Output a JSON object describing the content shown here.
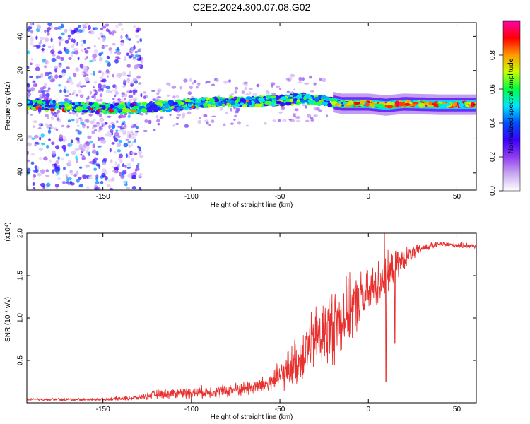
{
  "title": "C2E2.2024.300.07.08.G02",
  "chart_data": [
    {
      "type": "heatmap",
      "xlabel": "Height of straight line (km)",
      "ylabel": "Frequency (Hz)",
      "xlim": [
        -193,
        61
      ],
      "ylim": [
        -50,
        48
      ],
      "x_ticks": [
        -150,
        -100,
        -50,
        0,
        50
      ],
      "y_ticks": [
        -40,
        -20,
        0,
        20,
        40
      ],
      "x_tick_labels": [
        "-150",
        "-100",
        "-50",
        "0",
        "50"
      ],
      "y_tick_labels": [
        "-40",
        "-20",
        "0",
        "20",
        "40"
      ],
      "colorbar": {
        "label": "Normalized spectral amplitude",
        "range": [
          0,
          1
        ],
        "ticks": [
          0.0,
          0.2,
          0.4,
          0.6,
          0.8
        ],
        "tick_labels": [
          "0.0",
          "0.2",
          "0.4",
          "0.6",
          "0.8"
        ],
        "colormap": [
          "#ffffff",
          "#c9a8f0",
          "#8f3cf0",
          "#3a00ff",
          "#0050ff",
          "#00e5ff",
          "#00ff40",
          "#c8ff00",
          "#ff9a00",
          "#ff0000",
          "#ff00a8"
        ]
      },
      "ridge": [
        {
          "x": -193,
          "f": 0.0
        },
        {
          "x": -170,
          "f": -1.0
        },
        {
          "x": -150,
          "f": -2.5
        },
        {
          "x": -130,
          "f": -2.0
        },
        {
          "x": -110,
          "f": -0.5
        },
        {
          "x": -90,
          "f": 1.5
        },
        {
          "x": -70,
          "f": 1.5
        },
        {
          "x": -50,
          "f": 2.5
        },
        {
          "x": -35,
          "f": 3.5
        },
        {
          "x": -25,
          "f": 2.5
        },
        {
          "x": -15,
          "f": 0.5
        },
        {
          "x": 0,
          "f": 0.5
        },
        {
          "x": 10,
          "f": -0.5
        },
        {
          "x": 20,
          "f": 0.5
        },
        {
          "x": 40,
          "f": 0.0
        },
        {
          "x": 61,
          "f": 0.0
        }
      ],
      "scatter_region": {
        "x_from": -193,
        "x_to": -128,
        "f_from": -50,
        "f_to": 48
      }
    },
    {
      "type": "line",
      "xlabel": "Height of straight line (km)",
      "ylabel": "SNR (10 * v/v)",
      "y_multiplier": "(x10⁴)",
      "xlim": [
        -193,
        61
      ],
      "ylim": [
        0,
        2.0
      ],
      "x_ticks": [
        -150,
        -100,
        -50,
        0,
        50
      ],
      "y_ticks": [
        0.5,
        1.0,
        1.5,
        2.0
      ],
      "x_tick_labels": [
        "-150",
        "-100",
        "-50",
        "0",
        "50"
      ],
      "y_tick_labels": [
        "0.5",
        "1.0",
        "1.5",
        "2.0"
      ],
      "color": "#e8302e",
      "envelope": [
        {
          "x": -193,
          "base": 0.04,
          "amp": 0.02
        },
        {
          "x": -150,
          "base": 0.04,
          "amp": 0.02
        },
        {
          "x": -130,
          "base": 0.06,
          "amp": 0.04
        },
        {
          "x": -120,
          "base": 0.1,
          "amp": 0.06
        },
        {
          "x": -100,
          "base": 0.12,
          "amp": 0.08
        },
        {
          "x": -80,
          "base": 0.14,
          "amp": 0.09
        },
        {
          "x": -60,
          "base": 0.2,
          "amp": 0.12
        },
        {
          "x": -50,
          "base": 0.3,
          "amp": 0.2
        },
        {
          "x": -40,
          "base": 0.5,
          "amp": 0.35
        },
        {
          "x": -30,
          "base": 0.75,
          "amp": 0.45
        },
        {
          "x": -20,
          "base": 0.9,
          "amp": 0.55
        },
        {
          "x": -10,
          "base": 1.1,
          "amp": 0.45
        },
        {
          "x": 0,
          "base": 1.3,
          "amp": 0.35
        },
        {
          "x": 10,
          "base": 1.5,
          "amp": 0.3
        },
        {
          "x": 20,
          "base": 1.7,
          "amp": 0.15
        },
        {
          "x": 30,
          "base": 1.82,
          "amp": 0.06
        },
        {
          "x": 40,
          "base": 1.87,
          "amp": 0.04
        },
        {
          "x": 61,
          "base": 1.85,
          "amp": 0.04
        }
      ],
      "features": [
        {
          "x": 9.0,
          "y": 2.0
        },
        {
          "x": 10.0,
          "y": 0.25
        },
        {
          "x": 15.0,
          "y": 0.7
        }
      ]
    }
  ]
}
